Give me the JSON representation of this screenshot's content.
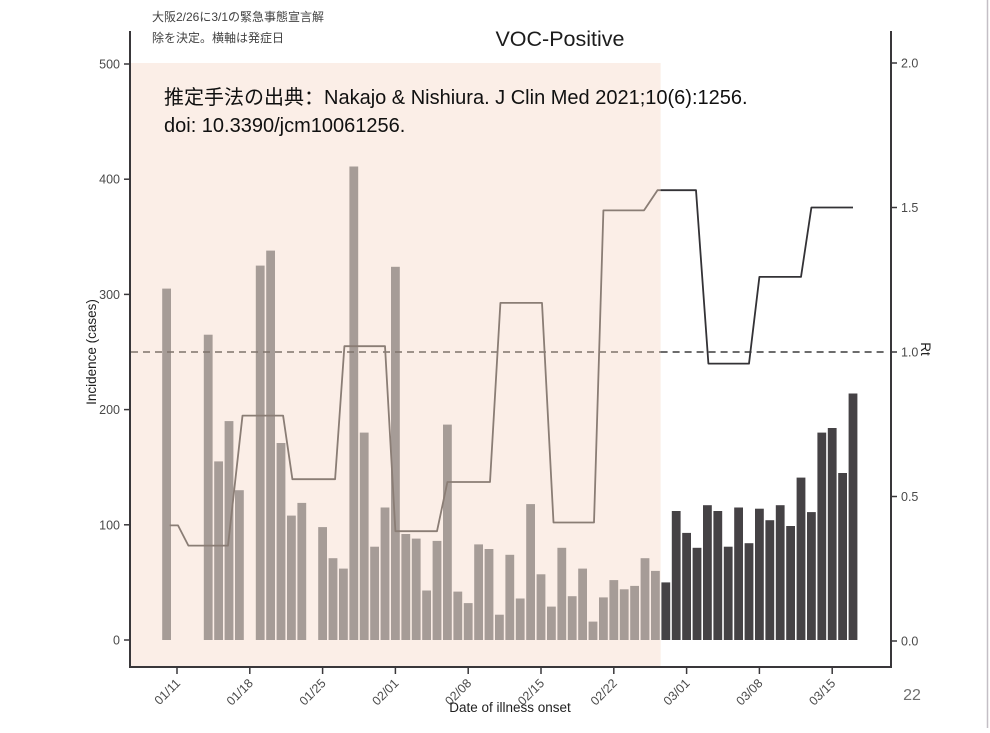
{
  "slide": {
    "note_line1": "大阪2/26に3/1の緊急事態宣言解",
    "note_line2": "除を決定。横軸は発症日",
    "title": "VOC-Positive",
    "page_number": "22"
  },
  "annotation": {
    "line1": "推定手法の出典：Nakajo & Nishiura.  J Clin Med 2021;10(6):1256.",
    "line2": "doi: 10.3390/jcm10061256."
  },
  "chart_data": {
    "type": "bar",
    "subtype": "daily incidence bars + stepped Rt line + dashed Rt=1 reference",
    "title": "VOC-Positive",
    "xlabel": "Date of illness onset",
    "ylabel_left": "Incidence (cases)",
    "ylabel_right": "Rt",
    "ylim_left": [
      0,
      500
    ],
    "ylim_right": [
      0.0,
      2.0
    ],
    "grid": "off",
    "y_ticks_left": [
      "0",
      "100",
      "200",
      "300",
      "400",
      "500"
    ],
    "y_ticks_right": [
      "0.0",
      "0.5",
      "1.0",
      "1.5",
      "2.0"
    ],
    "x_ticks": [
      "01/11",
      "01/18",
      "01/25",
      "02/01",
      "02/08",
      "02/15",
      "02/22",
      "03/01",
      "03/08",
      "03/15"
    ],
    "hline_rt": 1.0,
    "shaded_region": {
      "to_date": "02/26",
      "fill": "#fbeee7",
      "note": "shaded band spans panel start through 02/26"
    },
    "bars_format": [
      "date",
      "cases"
    ],
    "bars": [
      [
        "01/10",
        305
      ],
      [
        "01/14",
        265
      ],
      [
        "01/15",
        155
      ],
      [
        "01/16",
        190
      ],
      [
        "01/17",
        130
      ],
      [
        "01/19",
        325
      ],
      [
        "01/20",
        338
      ],
      [
        "01/21",
        171
      ],
      [
        "01/22",
        108
      ],
      [
        "01/23",
        119
      ],
      [
        "01/25",
        98
      ],
      [
        "01/26",
        71
      ],
      [
        "01/27",
        62
      ],
      [
        "01/28",
        411
      ],
      [
        "01/29",
        180
      ],
      [
        "01/30",
        81
      ],
      [
        "01/31",
        115
      ],
      [
        "02/01",
        324
      ],
      [
        "02/02",
        92
      ],
      [
        "02/03",
        88
      ],
      [
        "02/04",
        43
      ],
      [
        "02/05",
        86
      ],
      [
        "02/06",
        187
      ],
      [
        "02/07",
        42
      ],
      [
        "02/08",
        32
      ],
      [
        "02/09",
        83
      ],
      [
        "02/10",
        79
      ],
      [
        "02/11",
        22
      ],
      [
        "02/12",
        74
      ],
      [
        "02/13",
        36
      ],
      [
        "02/14",
        118
      ],
      [
        "02/15",
        57
      ],
      [
        "02/16",
        29
      ],
      [
        "02/17",
        80
      ],
      [
        "02/18",
        38
      ],
      [
        "02/19",
        62
      ],
      [
        "02/20",
        16
      ],
      [
        "02/21",
        37
      ],
      [
        "02/22",
        52
      ],
      [
        "02/23",
        44
      ],
      [
        "02/24",
        47
      ],
      [
        "02/25",
        71
      ],
      [
        "02/26",
        60
      ],
      [
        "02/27",
        50
      ],
      [
        "02/28",
        112
      ],
      [
        "03/01",
        93
      ],
      [
        "03/02",
        80
      ],
      [
        "03/03",
        117
      ],
      [
        "03/04",
        112
      ],
      [
        "03/05",
        81
      ],
      [
        "03/06",
        115
      ],
      [
        "03/07",
        84
      ],
      [
        "03/08",
        114
      ],
      [
        "03/09",
        104
      ],
      [
        "03/10",
        117
      ],
      [
        "03/11",
        99
      ],
      [
        "03/12",
        141
      ],
      [
        "03/13",
        111
      ],
      [
        "03/14",
        180
      ],
      [
        "03/15",
        184
      ],
      [
        "03/16",
        145
      ],
      [
        "03/17",
        214
      ]
    ],
    "bar_groups": {
      "pre_color": "#a69c97",
      "dark_color": "#454245",
      "dark_from_date": "02/27"
    },
    "rt_steps_format": [
      "days_after_01_11",
      "rt"
    ],
    "rt_steps": [
      [
        -0.7,
        0.4
      ],
      [
        0.1,
        0.4
      ],
      [
        1.1,
        0.33
      ],
      [
        4.9,
        0.33
      ],
      [
        6.3,
        0.78
      ],
      [
        10.2,
        0.78
      ],
      [
        11.1,
        0.56
      ],
      [
        15.2,
        0.56
      ],
      [
        16.1,
        1.02
      ],
      [
        20.0,
        1.02
      ],
      [
        21.0,
        0.38
      ],
      [
        25.0,
        0.38
      ],
      [
        26.0,
        0.55
      ],
      [
        30.1,
        0.55
      ],
      [
        31.1,
        1.17
      ],
      [
        35.1,
        1.17
      ],
      [
        36.2,
        0.41
      ],
      [
        40.1,
        0.41
      ],
      [
        41.0,
        1.49
      ],
      [
        44.9,
        1.49
      ],
      [
        46.2,
        1.56
      ],
      [
        49.9,
        1.56
      ],
      [
        51.1,
        0.96
      ],
      [
        55.0,
        0.96
      ],
      [
        56.0,
        1.26
      ],
      [
        60.0,
        1.26
      ],
      [
        61.0,
        1.5
      ],
      [
        65.0,
        1.5
      ]
    ],
    "line_colors": {
      "inside_shade": "#8a7d75",
      "outside_shade": "#333236",
      "hline_inside_shade": "#7e736c",
      "hline_outside_shade": "#3b3b3b"
    },
    "axis_color": "#39373a"
  }
}
